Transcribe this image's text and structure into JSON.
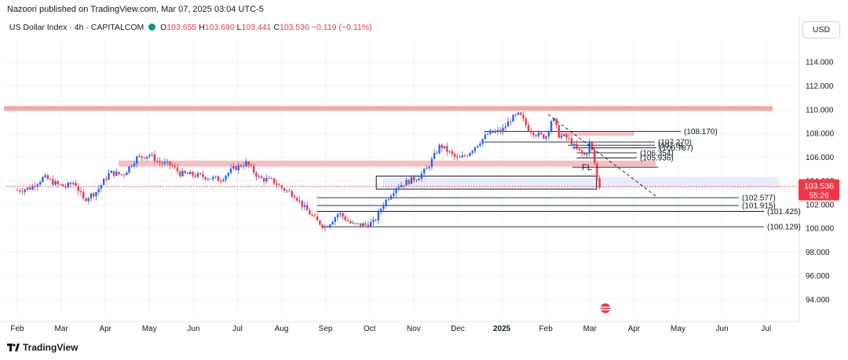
{
  "header": {
    "published": "Nazoori published on TradingView.com, Mar 07, 2025 03:04 UTC-5",
    "symbol": "US Dollar Index · 4h · CAPITALCOM",
    "o_label": "O",
    "o_val": "103.655",
    "h_label": "H",
    "h_val": "103.690",
    "l_label": "L",
    "l_val": "103.441",
    "c_label": "C",
    "c_val": "103.536",
    "change": "−0.119 (−0.11%)",
    "currency": "USD"
  },
  "footer": {
    "brand": "TradingView"
  },
  "colors": {
    "up": "#089981",
    "down": "#f23645",
    "candle_up": "#2962ff",
    "candle_down": "#f23645",
    "zone_red": "#f5a8a8",
    "zone_blue": "#e3e6f7",
    "grid": "#f0f3fa",
    "axis_text": "#131722"
  },
  "chart_data": {
    "type": "candlestick",
    "title": "US Dollar Index · 4h · CAPITALCOM",
    "x_labels": [
      "Feb",
      "Mar",
      "Apr",
      "May",
      "Jun",
      "Jul",
      "Aug",
      "Sep",
      "Oct",
      "Nov",
      "Dec",
      "2025",
      "Feb",
      "Mar",
      "Apr",
      "May",
      "Jun",
      "Jul"
    ],
    "y_ticks": [
      "114.000",
      "112.000",
      "110.000",
      "108.000",
      "106.000",
      "104.000",
      "102.000",
      "100.000",
      "98.000",
      "96.000",
      "94.000"
    ],
    "ylim": [
      92.8,
      115.8
    ],
    "last_price": "103.536",
    "countdown": "55:26",
    "price_path": [
      {
        "x": 0.0,
        "y": 103.2
      },
      {
        "x": 0.3,
        "y": 103.4
      },
      {
        "x": 0.6,
        "y": 104.3
      },
      {
        "x": 0.9,
        "y": 103.7
      },
      {
        "x": 1.1,
        "y": 103.5
      },
      {
        "x": 1.3,
        "y": 103.9
      },
      {
        "x": 1.5,
        "y": 102.4
      },
      {
        "x": 1.8,
        "y": 103.1
      },
      {
        "x": 2.1,
        "y": 104.7
      },
      {
        "x": 2.4,
        "y": 104.5
      },
      {
        "x": 2.7,
        "y": 105.9
      },
      {
        "x": 3.0,
        "y": 106.2
      },
      {
        "x": 3.2,
        "y": 105.6
      },
      {
        "x": 3.5,
        "y": 105.3
      },
      {
        "x": 3.7,
        "y": 104.6
      },
      {
        "x": 4.0,
        "y": 104.5
      },
      {
        "x": 4.3,
        "y": 104.3
      },
      {
        "x": 4.6,
        "y": 104.1
      },
      {
        "x": 4.9,
        "y": 105.0
      },
      {
        "x": 5.2,
        "y": 105.5
      },
      {
        "x": 5.5,
        "y": 104.2
      },
      {
        "x": 5.8,
        "y": 104.0
      },
      {
        "x": 6.0,
        "y": 103.4
      },
      {
        "x": 6.3,
        "y": 102.8
      },
      {
        "x": 6.5,
        "y": 101.8
      },
      {
        "x": 6.8,
        "y": 100.6
      },
      {
        "x": 7.0,
        "y": 100.1
      },
      {
        "x": 7.3,
        "y": 101.3
      },
      {
        "x": 7.6,
        "y": 100.3
      },
      {
        "x": 7.9,
        "y": 100.3
      },
      {
        "x": 8.1,
        "y": 100.5
      },
      {
        "x": 8.3,
        "y": 102.0
      },
      {
        "x": 8.6,
        "y": 103.5
      },
      {
        "x": 8.9,
        "y": 104.0
      },
      {
        "x": 9.1,
        "y": 104.3
      },
      {
        "x": 9.3,
        "y": 105.0
      },
      {
        "x": 9.6,
        "y": 107.0
      },
      {
        "x": 9.8,
        "y": 106.4
      },
      {
        "x": 10.0,
        "y": 105.8
      },
      {
        "x": 10.2,
        "y": 106.2
      },
      {
        "x": 10.5,
        "y": 107.3
      },
      {
        "x": 10.7,
        "y": 108.0
      },
      {
        "x": 11.0,
        "y": 108.2
      },
      {
        "x": 11.2,
        "y": 109.2
      },
      {
        "x": 11.4,
        "y": 109.6
      },
      {
        "x": 11.6,
        "y": 108.4
      },
      {
        "x": 11.8,
        "y": 107.9
      },
      {
        "x": 12.0,
        "y": 107.7
      },
      {
        "x": 12.15,
        "y": 109.4
      },
      {
        "x": 12.3,
        "y": 107.8
      },
      {
        "x": 12.5,
        "y": 107.6
      },
      {
        "x": 12.7,
        "y": 106.6
      },
      {
        "x": 12.9,
        "y": 106.1
      },
      {
        "x": 13.0,
        "y": 107.3
      },
      {
        "x": 13.1,
        "y": 105.6
      },
      {
        "x": 13.18,
        "y": 103.8
      },
      {
        "x": 13.22,
        "y": 103.54
      }
    ],
    "zones": [
      {
        "type": "resistance",
        "from_x": -0.3,
        "to_x": 17.15,
        "y0": 109.9,
        "y1": 110.3
      },
      {
        "type": "supply",
        "from_x": 12.3,
        "to_x": 14.0,
        "y0": 107.8,
        "y1": 108.2
      },
      {
        "type": "support",
        "from_x": 2.3,
        "to_x": 14.5,
        "y0": 105.2,
        "y1": 105.7
      },
      {
        "type": "demand",
        "from_x": 8.3,
        "to_x": 17.3,
        "y0": 103.4,
        "y1": 104.3
      }
    ],
    "levels": [
      {
        "label": "(108.170)",
        "value": 108.17,
        "from_x": 10.6
      },
      {
        "label": "(107.270)",
        "value": 107.27,
        "from_x": 10.6
      },
      {
        "label": "(107.0)",
        "value": 107.0,
        "from_x": 12.5
      },
      {
        "label": "(106.787)",
        "value": 106.787,
        "from_x": 12.6
      },
      {
        "label": "(106.354)",
        "value": 106.354,
        "from_x": 12.7
      },
      {
        "label": "(105.936)",
        "value": 105.936,
        "from_x": 12.7
      },
      {
        "label": "(102.577)",
        "value": 102.577,
        "from_x": 6.8
      },
      {
        "label": "(101.915)",
        "value": 101.915,
        "from_x": 6.8
      },
      {
        "label": "(101.425)",
        "value": 101.425,
        "from_x": 6.8
      },
      {
        "label": "(100.129)",
        "value": 100.129,
        "from_x": 6.9
      }
    ],
    "annotation_fl": "FL",
    "trendline": {
      "from": {
        "x": 12.05,
        "y": 109.6
      },
      "to": {
        "x": 14.5,
        "y": 102.7
      }
    }
  }
}
